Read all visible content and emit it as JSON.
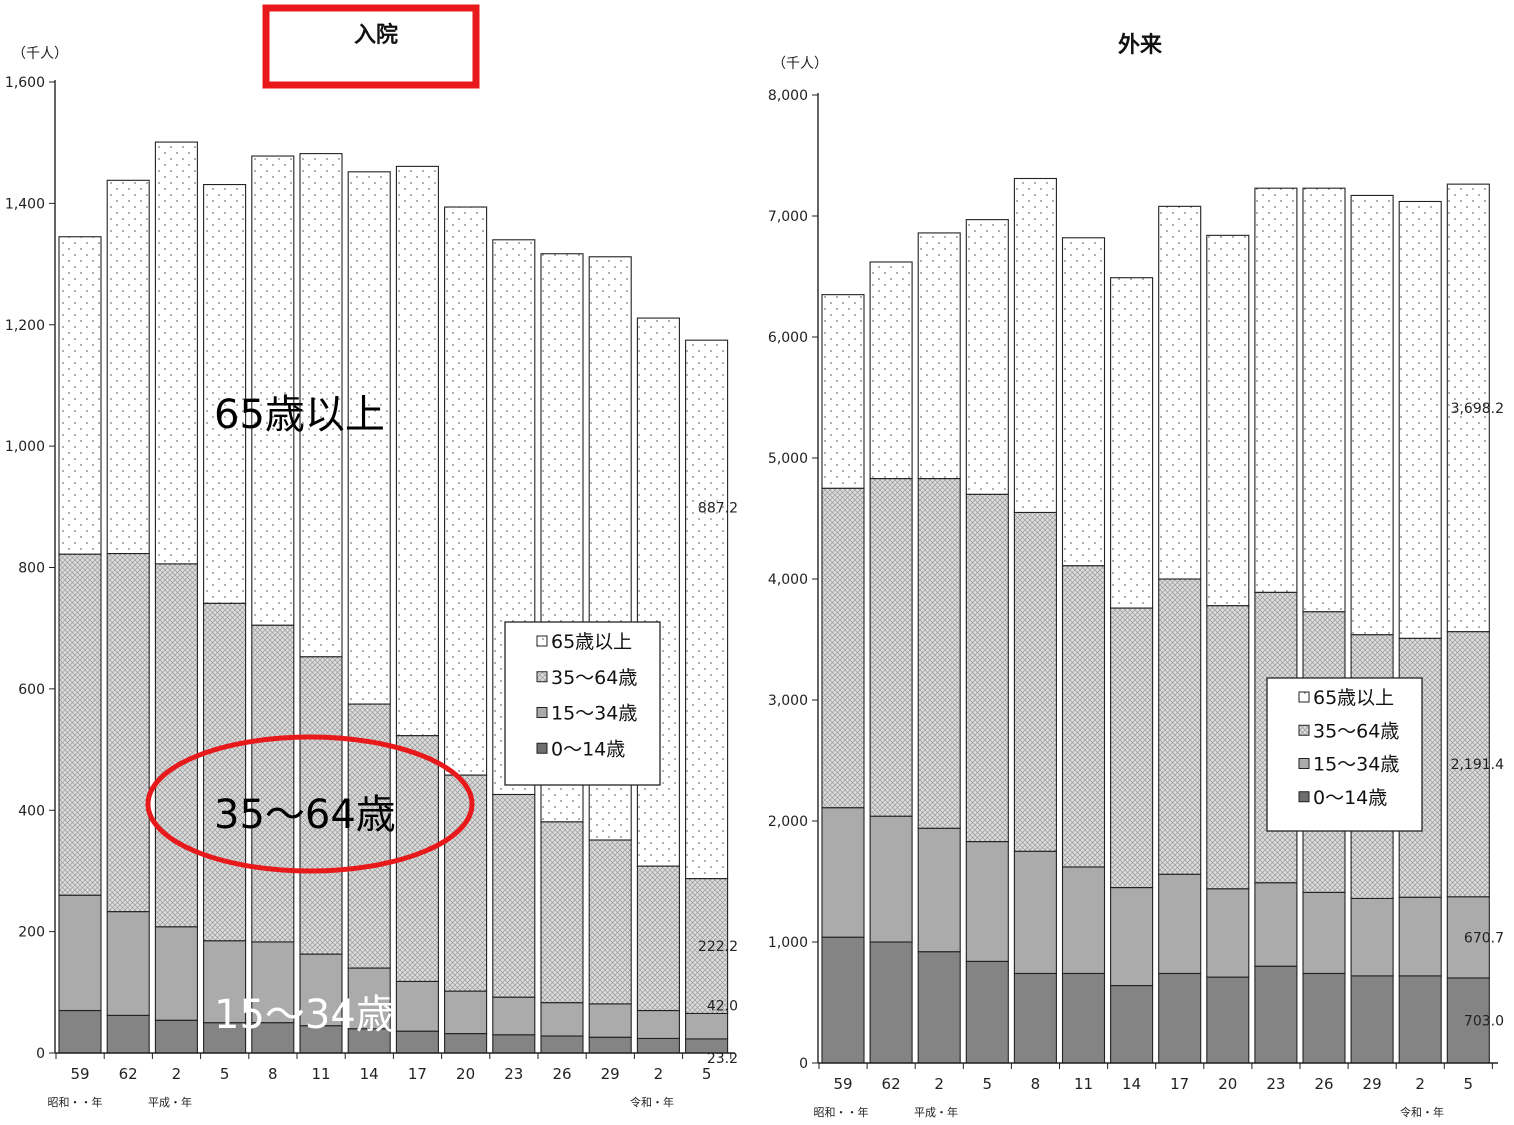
{
  "chart_data": [
    {
      "type": "bar",
      "stacked": true,
      "title": "入院",
      "unit_label": "（千人）",
      "ylim": [
        0,
        1600
      ],
      "yticks": [
        0,
        200,
        400,
        600,
        800,
        1000,
        1200,
        1400,
        1600
      ],
      "ytick_labels": [
        "0",
        "200",
        "400",
        "600",
        "800",
        "1,000",
        "1,200",
        "1,400",
        "1,600"
      ],
      "categories": [
        "59",
        "62",
        "2",
        "5",
        "8",
        "11",
        "14",
        "17",
        "20",
        "23",
        "26",
        "29",
        "2",
        "5"
      ],
      "era_labels": [
        "昭和・・年",
        "平成・年",
        "令和・年"
      ],
      "series": [
        {
          "name": "0～14歳",
          "values": [
            70,
            62,
            54,
            50,
            50,
            45,
            40,
            36,
            32,
            30,
            28,
            26,
            24,
            23.2
          ]
        },
        {
          "name": "15～34歳",
          "values": [
            190,
            171,
            154,
            135,
            133,
            118,
            100,
            82,
            70,
            62,
            55,
            55,
            46,
            42.0
          ]
        },
        {
          "name": "35～64歳",
          "values": [
            562,
            590,
            598,
            556,
            522,
            490,
            435,
            405,
            356,
            334,
            298,
            270,
            238,
            222.2
          ]
        },
        {
          "name": "65歳以上",
          "values": [
            523,
            615,
            695,
            690,
            773,
            829,
            877,
            938,
            936,
            914,
            936,
            961,
            903,
            887.2
          ]
        }
      ],
      "data_labels": [
        "887.2",
        "222.2",
        "42.0",
        "23.2"
      ],
      "legend": [
        "65歳以上",
        "35～64歳",
        "15～34歳",
        "0～14歳"
      ],
      "legend_position": "center-right",
      "annotations": [
        "65歳以上",
        "35～64歳",
        "15～34歳"
      ]
    },
    {
      "type": "bar",
      "stacked": true,
      "title": "外来",
      "unit_label": "（千人）",
      "ylim": [
        0,
        8000
      ],
      "yticks": [
        0,
        1000,
        2000,
        3000,
        4000,
        5000,
        6000,
        7000,
        8000
      ],
      "ytick_labels": [
        "0",
        "1,000",
        "2,000",
        "3,000",
        "4,000",
        "5,000",
        "6,000",
        "7,000",
        "8,000"
      ],
      "categories": [
        "59",
        "62",
        "2",
        "5",
        "8",
        "11",
        "14",
        "17",
        "20",
        "23",
        "26",
        "29",
        "2",
        "5"
      ],
      "era_labels": [
        "昭和・・年",
        "平成・年",
        "令和・年"
      ],
      "series": [
        {
          "name": "0～14歳",
          "values": [
            1040,
            1000,
            920,
            840,
            740,
            740,
            640,
            740,
            710,
            800,
            740,
            720,
            720,
            703.0
          ]
        },
        {
          "name": "15～34歳",
          "values": [
            1070,
            1040,
            1020,
            990,
            1010,
            880,
            810,
            820,
            730,
            690,
            670,
            640,
            650,
            670.7
          ]
        },
        {
          "name": "35～64歳",
          "values": [
            2640,
            2790,
            2890,
            2870,
            2800,
            2490,
            2310,
            2440,
            2340,
            2400,
            2320,
            2180,
            2140,
            2191.4
          ]
        },
        {
          "name": "65歳以上",
          "values": [
            1600,
            1790,
            2030,
            2270,
            2760,
            2710,
            2730,
            3080,
            3060,
            3340,
            3500,
            3630,
            3610,
            3698.2
          ]
        }
      ],
      "data_labels": [
        "3,698.2",
        "2,191.4",
        "670.7",
        "703.0"
      ],
      "legend": [
        "65歳以上",
        "35～64歳",
        "15～34歳",
        "0～14歳"
      ],
      "legend_position": "center-right"
    }
  ]
}
